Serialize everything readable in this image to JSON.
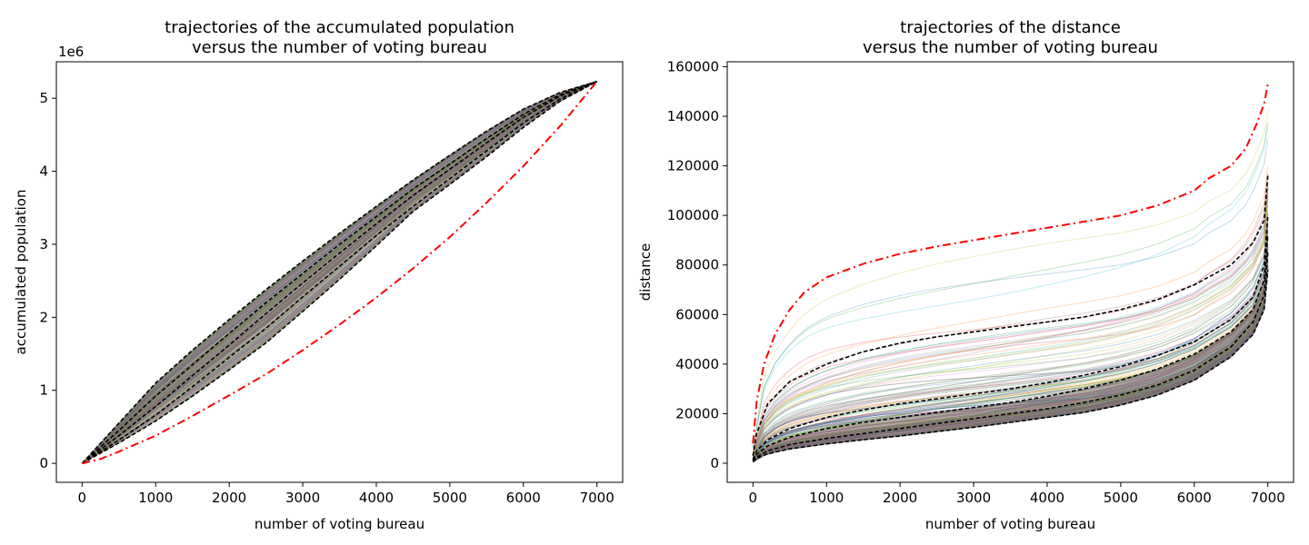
{
  "chart_data": [
    {
      "type": "line",
      "title_line1": "trajectories of the accumulated population",
      "title_line2": "versus the number of voting bureau",
      "xlabel": "number of voting bureau",
      "ylabel": "accumulated population",
      "y_offset_label": "1e6",
      "xlim": [
        -350,
        7350
      ],
      "ylim": [
        -0.26,
        5.5
      ],
      "y_unit_multiplier": 1000000,
      "xticks": [
        0,
        1000,
        2000,
        3000,
        4000,
        5000,
        6000,
        7000
      ],
      "yticks": [
        0,
        1,
        2,
        3,
        4,
        5
      ],
      "grid": false,
      "series": [
        {
          "style": "red-dashdot",
          "color": "#ff0000",
          "x": [
            0,
            250,
            500,
            1000,
            1500,
            2000,
            2500,
            3000,
            3500,
            4000,
            4500,
            5000,
            5500,
            6000,
            6500,
            7000
          ],
          "y": [
            0,
            0.06,
            0.16,
            0.38,
            0.65,
            0.93,
            1.22,
            1.55,
            1.9,
            2.27,
            2.67,
            3.1,
            3.57,
            4.07,
            4.62,
            5.23
          ]
        },
        {
          "style": "black-dashed",
          "color": "#000000",
          "x": [
            0,
            500,
            1000,
            1500,
            2000,
            2500,
            3000,
            3500,
            4000,
            4500,
            5000,
            5500,
            6000,
            6500,
            7000
          ],
          "y": [
            0,
            0.55,
            1.1,
            1.55,
            1.97,
            2.38,
            2.77,
            3.15,
            3.52,
            3.88,
            4.22,
            4.55,
            4.85,
            5.08,
            5.23
          ]
        },
        {
          "style": "black-dashed",
          "color": "#000000",
          "x": [
            0,
            500,
            1000,
            1500,
            2000,
            2500,
            3000,
            3500,
            4000,
            4500,
            5000,
            5500,
            6000,
            6500,
            7000
          ],
          "y": [
            0,
            0.45,
            0.92,
            1.35,
            1.78,
            2.2,
            2.6,
            3.0,
            3.38,
            3.76,
            4.1,
            4.45,
            4.78,
            5.05,
            5.23
          ]
        },
        {
          "style": "black-dashed",
          "color": "#000000",
          "x": [
            0,
            500,
            1000,
            1500,
            2000,
            2500,
            3000,
            3500,
            4000,
            4500,
            5000,
            5500,
            6000,
            6500,
            7000
          ],
          "y": [
            0,
            0.38,
            0.78,
            1.2,
            1.62,
            2.05,
            2.47,
            2.88,
            3.28,
            3.67,
            4.03,
            4.39,
            4.74,
            5.03,
            5.23
          ]
        },
        {
          "style": "black-dashed",
          "color": "#000000",
          "x": [
            0,
            500,
            1000,
            1500,
            2000,
            2500,
            3000,
            3500,
            4000,
            4500,
            5000,
            5500,
            6000,
            6500,
            7000
          ],
          "y": [
            0,
            0.32,
            0.66,
            1.05,
            1.45,
            1.85,
            2.28,
            2.7,
            3.12,
            3.52,
            3.9,
            4.28,
            4.66,
            4.99,
            5.23
          ]
        },
        {
          "style": "black-dashed",
          "color": "#000000",
          "x": [
            0,
            500,
            1000,
            1500,
            2000,
            2500,
            3000,
            3500,
            4000,
            4500,
            5000,
            5500,
            6000,
            6500,
            7000
          ],
          "y": [
            0,
            0.28,
            0.58,
            0.92,
            1.28,
            1.65,
            2.08,
            2.52,
            2.98,
            3.45,
            3.82,
            4.2,
            4.6,
            4.96,
            5.23
          ]
        }
      ]
    },
    {
      "type": "line",
      "title_line1": "trajectories of the distance",
      "title_line2": "versus the number of voting bureau",
      "xlabel": "number of voting bureau",
      "ylabel": "distance",
      "xlim": [
        -350,
        7350
      ],
      "ylim": [
        -7700,
        162000
      ],
      "xticks": [
        0,
        1000,
        2000,
        3000,
        4000,
        5000,
        6000,
        7000
      ],
      "yticks": [
        0,
        20000,
        40000,
        60000,
        80000,
        100000,
        120000,
        140000,
        160000
      ],
      "grid": false,
      "series": [
        {
          "style": "red-dashdot",
          "color": "#ff0000",
          "x": [
            0,
            50,
            150,
            300,
            500,
            700,
            1000,
            1500,
            2000,
            2500,
            3000,
            3500,
            4000,
            4500,
            5000,
            5500,
            6000,
            6200,
            6500,
            6700,
            6850,
            6950,
            7000
          ],
          "y": [
            8000,
            25000,
            40000,
            52000,
            62000,
            69000,
            75000,
            80500,
            84500,
            87500,
            90000,
            92500,
            95000,
            97500,
            100000,
            104000,
            110000,
            115000,
            120000,
            127000,
            137000,
            145000,
            153000
          ]
        },
        {
          "style": "black-dashed",
          "color": "#000000",
          "x": [
            0,
            50,
            200,
            500,
            1000,
            1500,
            2000,
            2500,
            3000,
            3500,
            4000,
            4500,
            5000,
            5500,
            6000,
            6500,
            6800,
            6950,
            7000
          ],
          "y": [
            3000,
            12000,
            24000,
            33000,
            40000,
            45000,
            48500,
            51000,
            53000,
            55000,
            57000,
            59000,
            62000,
            66000,
            72000,
            80000,
            89000,
            98000,
            116000
          ]
        },
        {
          "style": "black-dashed",
          "color": "#000000",
          "x": [
            0,
            50,
            200,
            500,
            1000,
            1500,
            2000,
            2500,
            3000,
            3500,
            4000,
            4500,
            5000,
            5500,
            6000,
            6500,
            6800,
            6950,
            7000
          ],
          "y": [
            1500,
            5000,
            9500,
            14000,
            18500,
            21500,
            24000,
            26000,
            28000,
            30000,
            32500,
            35500,
            39000,
            43500,
            49000,
            58000,
            67000,
            80000,
            100000
          ]
        },
        {
          "style": "black-dashed",
          "color": "#000000",
          "x": [
            0,
            50,
            200,
            500,
            1000,
            1500,
            2000,
            2500,
            3000,
            3500,
            4000,
            4500,
            5000,
            5500,
            6000,
            6500,
            6800,
            6950,
            7000
          ],
          "y": [
            1000,
            3500,
            7000,
            10500,
            14000,
            16500,
            18500,
            20500,
            22500,
            24500,
            27000,
            30000,
            33500,
            38000,
            44000,
            53000,
            62000,
            74000,
            92000
          ]
        },
        {
          "style": "black-dashed",
          "color": "#000000",
          "x": [
            0,
            50,
            200,
            500,
            1000,
            1500,
            2000,
            2500,
            3000,
            3500,
            4000,
            4500,
            5000,
            5500,
            6000,
            6500,
            6800,
            6950,
            7000
          ],
          "y": [
            800,
            2500,
            5000,
            7500,
            10000,
            12000,
            14000,
            16000,
            18000,
            20000,
            22000,
            24500,
            27500,
            31500,
            37500,
            47000,
            57000,
            68000,
            85000
          ]
        },
        {
          "style": "black-dashed",
          "color": "#000000",
          "x": [
            0,
            50,
            200,
            500,
            1000,
            1500,
            2000,
            2500,
            3000,
            3500,
            4000,
            4500,
            5000,
            5500,
            6000,
            6500,
            6800,
            6950,
            7000
          ],
          "y": [
            500,
            2000,
            3800,
            5800,
            7800,
            9500,
            11000,
            12800,
            14500,
            16500,
            18500,
            20500,
            23500,
            27500,
            33500,
            43000,
            52000,
            62000,
            78000
          ]
        }
      ]
    }
  ]
}
